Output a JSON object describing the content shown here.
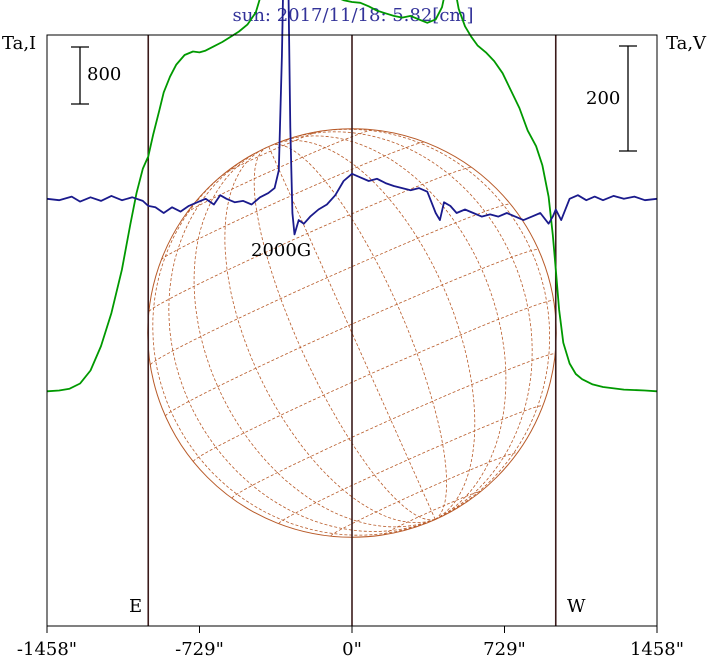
{
  "chart_data": {
    "type": "line",
    "title": "sun: 2017/11/18: 5.82[cm]",
    "left_axis_label": "Ta,I",
    "right_axis_label": "Ta,V",
    "x_ticks": [
      "-1458\"",
      "-729\"",
      "0\"",
      "729\"",
      "1458\""
    ],
    "x_tick_values": [
      -1458,
      -729,
      0,
      729,
      1458
    ],
    "xlim": [
      -1458,
      1458
    ],
    "limb_labels": {
      "east": "E",
      "west": "W"
    },
    "limb_positions": [
      -974,
      0,
      974
    ],
    "scale_bars": {
      "intensity": {
        "label": "800",
        "value": 800
      },
      "polarization": {
        "label": "200",
        "value": 200
      }
    },
    "annotations": [
      {
        "text": "2000G",
        "x": -315
      }
    ],
    "ylim": {
      "intensity": [
        -1350,
        2050
      ],
      "polarization": [
        -600,
        230
      ]
    },
    "series": [
      {
        "name": "I",
        "axis": "intensity",
        "color": "#009900",
        "points": [
          [
            -1458,
            0
          ],
          [
            -1400,
            5
          ],
          [
            -1350,
            15
          ],
          [
            -1300,
            45
          ],
          [
            -1250,
            120
          ],
          [
            -1200,
            260
          ],
          [
            -1150,
            450
          ],
          [
            -1100,
            700
          ],
          [
            -1060,
            960
          ],
          [
            -1030,
            1140
          ],
          [
            -1000,
            1280
          ],
          [
            -980,
            1335
          ],
          [
            -974,
            1350
          ],
          [
            -950,
            1480
          ],
          [
            -920,
            1620
          ],
          [
            -900,
            1720
          ],
          [
            -870,
            1810
          ],
          [
            -840,
            1880
          ],
          [
            -800,
            1935
          ],
          [
            -760,
            1955
          ],
          [
            -729,
            1950
          ],
          [
            -700,
            1960
          ],
          [
            -660,
            1985
          ],
          [
            -620,
            2010
          ],
          [
            -580,
            2040
          ],
          [
            -540,
            2070
          ],
          [
            -500,
            2110
          ],
          [
            -460,
            2180
          ],
          [
            -420,
            2340
          ],
          [
            -390,
            2480
          ],
          [
            -360,
            2560
          ],
          [
            -340,
            2620
          ],
          [
            -320,
            2800
          ],
          [
            -305,
            2900
          ],
          [
            -290,
            2850
          ],
          [
            -270,
            2650
          ],
          [
            -250,
            2520
          ],
          [
            -220,
            2440
          ],
          [
            -190,
            2400
          ],
          [
            -150,
            2350
          ],
          [
            -120,
            2300
          ],
          [
            -80,
            2270
          ],
          [
            -40,
            2250
          ],
          [
            0,
            2240
          ],
          [
            40,
            2235
          ],
          [
            80,
            2215
          ],
          [
            120,
            2190
          ],
          [
            160,
            2175
          ],
          [
            200,
            2160
          ],
          [
            240,
            2150
          ],
          [
            280,
            2160
          ],
          [
            320,
            2140
          ],
          [
            360,
            2120
          ],
          [
            400,
            2140
          ],
          [
            430,
            2210
          ],
          [
            450,
            2320
          ],
          [
            470,
            2390
          ],
          [
            490,
            2330
          ],
          [
            510,
            2200
          ],
          [
            540,
            2100
          ],
          [
            570,
            2040
          ],
          [
            600,
            1990
          ],
          [
            640,
            1950
          ],
          [
            680,
            1900
          ],
          [
            720,
            1830
          ],
          [
            760,
            1730
          ],
          [
            800,
            1630
          ],
          [
            840,
            1500
          ],
          [
            880,
            1410
          ],
          [
            910,
            1300
          ],
          [
            940,
            1120
          ],
          [
            960,
            900
          ],
          [
            974,
            700
          ],
          [
            990,
            470
          ],
          [
            1010,
            280
          ],
          [
            1040,
            160
          ],
          [
            1070,
            100
          ],
          [
            1100,
            70
          ],
          [
            1150,
            40
          ],
          [
            1200,
            25
          ],
          [
            1300,
            10
          ],
          [
            1400,
            5
          ],
          [
            1458,
            0
          ]
        ]
      },
      {
        "name": "V",
        "axis": "polarization",
        "color": "#1a1a8c",
        "points": [
          [
            -1458,
            0
          ],
          [
            -1400,
            -2
          ],
          [
            -1340,
            3
          ],
          [
            -1300,
            -4
          ],
          [
            -1250,
            2
          ],
          [
            -1200,
            -3
          ],
          [
            -1150,
            4
          ],
          [
            -1100,
            -2
          ],
          [
            -1050,
            2
          ],
          [
            -1000,
            -3
          ],
          [
            -974,
            -10
          ],
          [
            -940,
            -12
          ],
          [
            -900,
            -20
          ],
          [
            -860,
            -12
          ],
          [
            -820,
            -18
          ],
          [
            -780,
            -10
          ],
          [
            -740,
            -5
          ],
          [
            -700,
            0
          ],
          [
            -660,
            -8
          ],
          [
            -630,
            5
          ],
          [
            -600,
            0
          ],
          [
            -560,
            -5
          ],
          [
            -520,
            -3
          ],
          [
            -480,
            -8
          ],
          [
            -440,
            2
          ],
          [
            -400,
            8
          ],
          [
            -370,
            15
          ],
          [
            -350,
            40
          ],
          [
            -335,
            200
          ],
          [
            -325,
            360
          ],
          [
            -315,
            400
          ],
          [
            -305,
            320
          ],
          [
            -295,
            100
          ],
          [
            -285,
            -20
          ],
          [
            -275,
            -50
          ],
          [
            -255,
            -30
          ],
          [
            -230,
            -35
          ],
          [
            -200,
            -25
          ],
          [
            -160,
            -15
          ],
          [
            -120,
            -8
          ],
          [
            -80,
            5
          ],
          [
            -40,
            25
          ],
          [
            0,
            35
          ],
          [
            40,
            30
          ],
          [
            80,
            25
          ],
          [
            120,
            28
          ],
          [
            160,
            22
          ],
          [
            200,
            18
          ],
          [
            240,
            15
          ],
          [
            280,
            12
          ],
          [
            320,
            15
          ],
          [
            360,
            10
          ],
          [
            380,
            -5
          ],
          [
            400,
            -20
          ],
          [
            420,
            -30
          ],
          [
            440,
            -5
          ],
          [
            470,
            -10
          ],
          [
            500,
            -20
          ],
          [
            540,
            -15
          ],
          [
            580,
            -20
          ],
          [
            620,
            -25
          ],
          [
            660,
            -22
          ],
          [
            700,
            -25
          ],
          [
            740,
            -20
          ],
          [
            780,
            -25
          ],
          [
            820,
            -30
          ],
          [
            860,
            -25
          ],
          [
            900,
            -20
          ],
          [
            940,
            -35
          ],
          [
            960,
            -25
          ],
          [
            974,
            -15
          ],
          [
            1000,
            -30
          ],
          [
            1040,
            0
          ],
          [
            1080,
            5
          ],
          [
            1120,
            -2
          ],
          [
            1160,
            3
          ],
          [
            1200,
            -2
          ],
          [
            1250,
            4
          ],
          [
            1300,
            0
          ],
          [
            1350,
            3
          ],
          [
            1400,
            -2
          ],
          [
            1458,
            0
          ]
        ]
      }
    ],
    "disk_grid": {
      "color": "#b85a28"
    }
  }
}
